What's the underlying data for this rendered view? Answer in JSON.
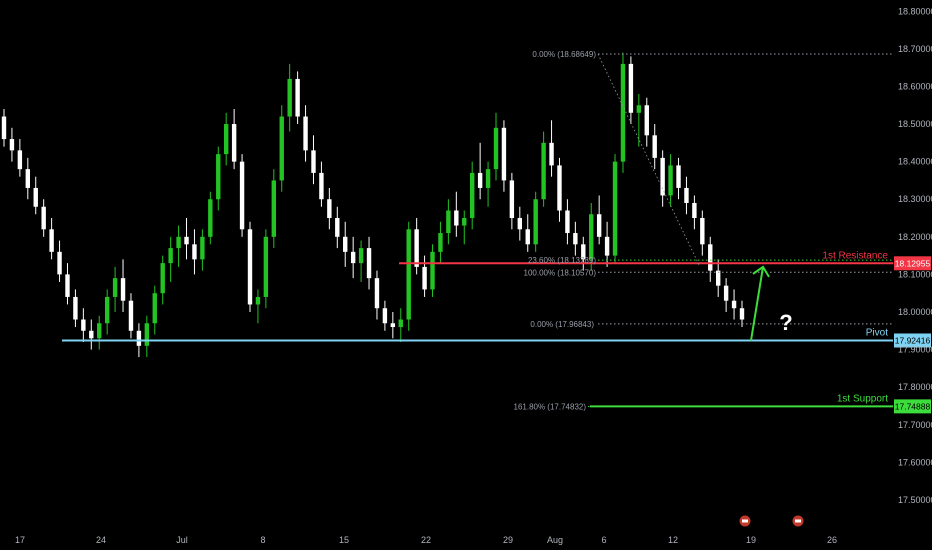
{
  "chart_data": {
    "type": "candlestick",
    "ylim": [
      17.42,
      18.83
    ],
    "y_ticks": [
      "18.80000",
      "18.70000",
      "18.60000",
      "18.50000",
      "18.40000",
      "18.30000",
      "18.20000",
      "18.10000",
      "18.00000",
      "17.90000",
      "17.80000",
      "17.70000",
      "17.60000",
      "17.50000"
    ],
    "x_ticks": [
      "17",
      "24",
      "Jul",
      "8",
      "15",
      "22",
      "29",
      "Aug",
      "6",
      "12",
      "19",
      "26"
    ],
    "candles": [
      [
        18.52,
        18.54,
        18.44,
        18.46
      ],
      [
        18.46,
        18.49,
        18.4,
        18.43
      ],
      [
        18.43,
        18.46,
        18.36,
        18.38
      ],
      [
        18.38,
        18.41,
        18.3,
        18.33
      ],
      [
        18.33,
        18.36,
        18.26,
        18.28
      ],
      [
        18.28,
        18.3,
        18.2,
        18.22
      ],
      [
        18.22,
        18.25,
        18.14,
        18.16
      ],
      [
        18.16,
        18.19,
        18.08,
        18.1
      ],
      [
        18.1,
        18.13,
        18.02,
        18.04
      ],
      [
        18.04,
        18.06,
        17.96,
        17.98
      ],
      [
        17.98,
        18.01,
        17.92,
        17.95
      ],
      [
        17.95,
        17.98,
        17.9,
        17.93
      ],
      [
        17.93,
        17.99,
        17.9,
        17.97
      ],
      [
        17.97,
        18.06,
        17.94,
        18.04
      ],
      [
        18.04,
        18.12,
        18.0,
        18.09
      ],
      [
        18.09,
        18.14,
        18.0,
        18.03
      ],
      [
        18.03,
        18.05,
        17.93,
        17.95
      ],
      [
        17.95,
        17.97,
        17.88,
        17.91
      ],
      [
        17.91,
        17.99,
        17.88,
        17.97
      ],
      [
        17.97,
        18.07,
        17.94,
        18.05
      ],
      [
        18.05,
        18.15,
        18.02,
        18.13
      ],
      [
        18.13,
        18.2,
        18.08,
        18.17
      ],
      [
        18.17,
        18.23,
        18.12,
        18.2
      ],
      [
        18.2,
        18.25,
        18.14,
        18.18
      ],
      [
        18.18,
        18.22,
        18.1,
        18.14
      ],
      [
        18.14,
        18.22,
        18.11,
        18.2
      ],
      [
        18.2,
        18.32,
        18.18,
        18.3
      ],
      [
        18.3,
        18.44,
        18.27,
        18.42
      ],
      [
        18.42,
        18.53,
        18.39,
        18.5
      ],
      [
        18.5,
        18.54,
        18.38,
        18.4
      ],
      [
        18.4,
        18.42,
        18.2,
        18.22
      ],
      [
        18.22,
        18.24,
        18.0,
        18.02
      ],
      [
        18.02,
        18.06,
        17.97,
        18.04
      ],
      [
        18.04,
        18.22,
        18.01,
        18.2
      ],
      [
        18.2,
        18.38,
        18.17,
        18.35
      ],
      [
        18.35,
        18.55,
        18.32,
        18.52
      ],
      [
        18.52,
        18.66,
        18.48,
        18.62
      ],
      [
        18.62,
        18.64,
        18.5,
        18.52
      ],
      [
        18.52,
        18.55,
        18.4,
        18.43
      ],
      [
        18.43,
        18.47,
        18.34,
        18.37
      ],
      [
        18.37,
        18.4,
        18.28,
        18.3
      ],
      [
        18.3,
        18.33,
        18.22,
        18.25
      ],
      [
        18.25,
        18.28,
        18.17,
        18.2
      ],
      [
        18.2,
        18.24,
        18.12,
        18.16
      ],
      [
        18.16,
        18.2,
        18.09,
        18.13
      ],
      [
        18.13,
        18.19,
        18.08,
        18.17
      ],
      [
        18.17,
        18.2,
        18.06,
        18.09
      ],
      [
        18.09,
        18.11,
        17.98,
        18.01
      ],
      [
        18.01,
        18.03,
        17.95,
        17.97
      ],
      [
        17.97,
        18.0,
        17.93,
        17.96
      ],
      [
        17.96,
        18.01,
        17.92,
        17.98
      ],
      [
        17.98,
        18.24,
        17.95,
        18.22
      ],
      [
        18.22,
        18.25,
        18.1,
        18.12
      ],
      [
        18.12,
        18.15,
        18.04,
        18.06
      ],
      [
        18.06,
        18.18,
        18.04,
        18.16
      ],
      [
        18.16,
        18.24,
        18.13,
        18.21
      ],
      [
        18.21,
        18.3,
        18.18,
        18.27
      ],
      [
        18.27,
        18.32,
        18.2,
        18.23
      ],
      [
        18.23,
        18.27,
        18.18,
        18.25
      ],
      [
        18.25,
        18.4,
        18.22,
        18.37
      ],
      [
        18.37,
        18.45,
        18.3,
        18.33
      ],
      [
        18.33,
        18.4,
        18.28,
        18.38
      ],
      [
        18.38,
        18.53,
        18.35,
        18.49
      ],
      [
        18.49,
        18.51,
        18.32,
        18.35
      ],
      [
        18.35,
        18.37,
        18.22,
        18.25
      ],
      [
        18.25,
        18.28,
        18.19,
        18.22
      ],
      [
        18.22,
        18.26,
        18.16,
        18.18
      ],
      [
        18.18,
        18.32,
        18.16,
        18.3
      ],
      [
        18.3,
        18.48,
        18.28,
        18.45
      ],
      [
        18.45,
        18.51,
        18.36,
        18.39
      ],
      [
        18.39,
        18.41,
        18.24,
        18.27
      ],
      [
        18.27,
        18.3,
        18.18,
        18.21
      ],
      [
        18.21,
        18.24,
        18.15,
        18.18
      ],
      [
        18.18,
        18.2,
        18.11,
        18.14
      ],
      [
        18.14,
        18.29,
        18.11,
        18.26
      ],
      [
        18.26,
        18.31,
        18.18,
        18.2
      ],
      [
        18.2,
        18.24,
        18.12,
        18.15
      ],
      [
        18.15,
        18.42,
        18.13,
        18.4
      ],
      [
        18.4,
        18.69,
        18.37,
        18.66
      ],
      [
        18.66,
        18.68,
        18.5,
        18.53
      ],
      [
        18.53,
        18.58,
        18.44,
        18.55
      ],
      [
        18.55,
        18.57,
        18.44,
        18.47
      ],
      [
        18.47,
        18.5,
        18.38,
        18.41
      ],
      [
        18.41,
        18.43,
        18.28,
        18.31
      ],
      [
        18.31,
        18.42,
        18.28,
        18.39
      ],
      [
        18.39,
        18.41,
        18.3,
        18.33
      ],
      [
        18.33,
        18.36,
        18.26,
        18.29
      ],
      [
        18.29,
        18.31,
        18.22,
        18.25
      ],
      [
        18.25,
        18.27,
        18.15,
        18.18
      ],
      [
        18.18,
        18.2,
        18.08,
        18.11
      ],
      [
        18.11,
        18.14,
        18.04,
        18.07
      ],
      [
        18.07,
        18.09,
        18.0,
        18.03
      ],
      [
        18.03,
        18.06,
        17.98,
        18.01
      ],
      [
        18.01,
        18.03,
        17.96,
        17.98
      ]
    ],
    "levels": [
      {
        "name": "1st Resistance",
        "value": 18.12955,
        "tag": "18.12955",
        "color": "#f23645"
      },
      {
        "name": "Pivot",
        "value": 17.92416,
        "tag": "17.92416",
        "color": "#7fd3f2"
      },
      {
        "name": "1st Support",
        "value": 17.74888,
        "tag": "17.74888",
        "color": "#3ddc3d"
      }
    ],
    "fib_labels": [
      {
        "text": "0.00% (18.68649)",
        "value": 18.68649
      },
      {
        "text": "23.60% (18.13789)",
        "value": 18.13789
      },
      {
        "text": "100.00% (18.10570)",
        "value": 18.1057
      },
      {
        "text": "0.00% (17.96843)",
        "value": 17.96843
      },
      {
        "text": "161.80% (17.74832)",
        "value": 17.74832
      }
    ],
    "annotation": "?"
  },
  "colors": {
    "up": "#22c322",
    "down": "#ffffff",
    "background": "#000000",
    "arrow": "#3ddc3d",
    "events": "#c0392b"
  }
}
